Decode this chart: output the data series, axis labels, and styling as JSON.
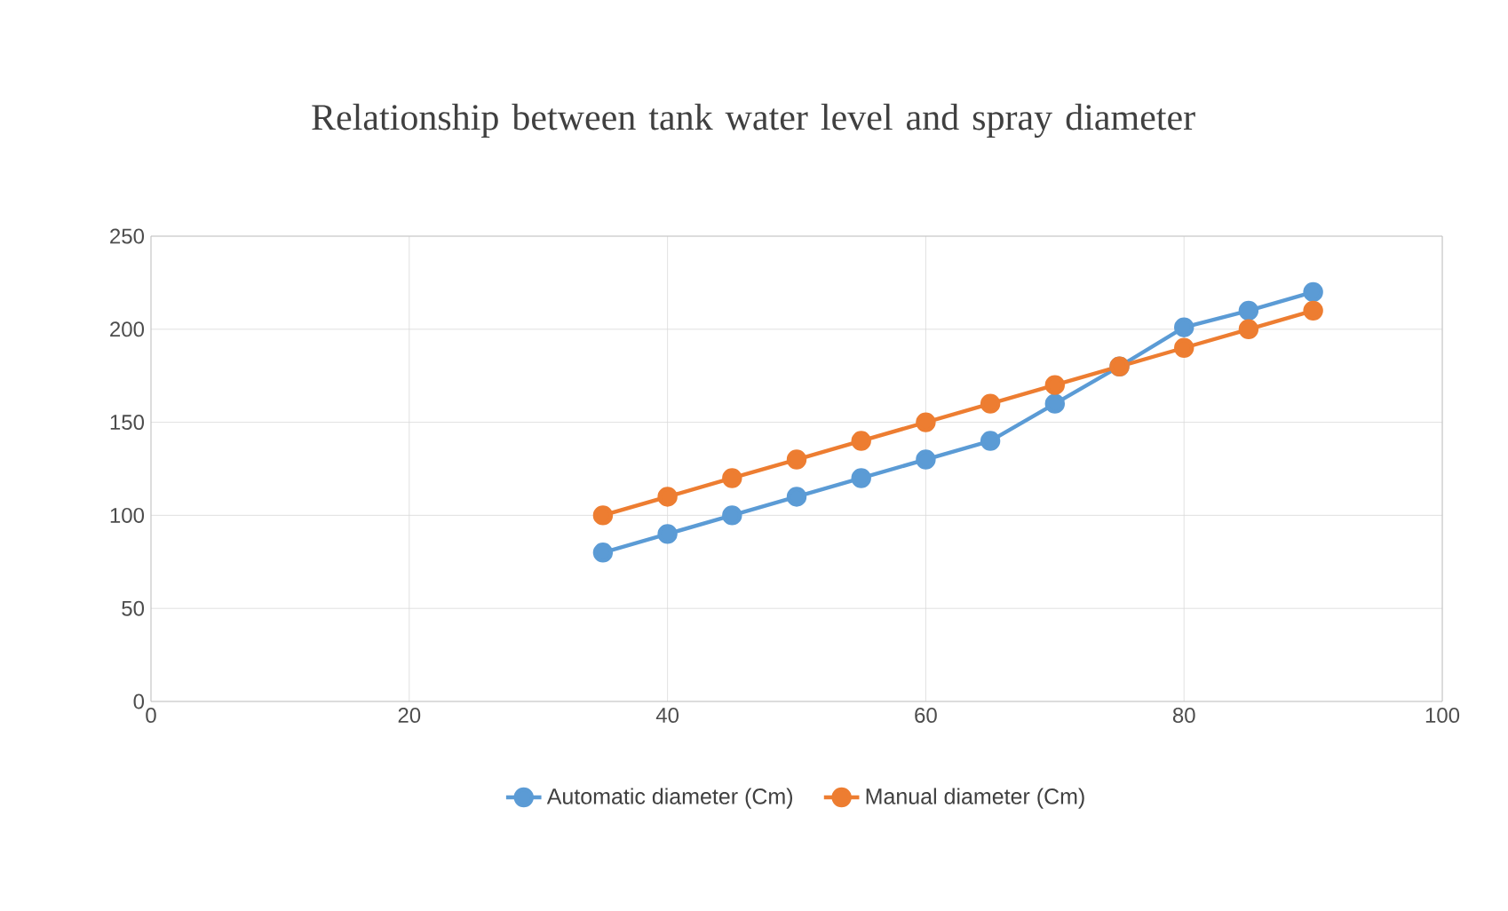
{
  "chart_data": {
    "type": "line",
    "title": "Relationship between tank water level and spray diameter",
    "x": [
      35,
      40,
      45,
      50,
      55,
      60,
      65,
      70,
      75,
      80,
      85,
      90
    ],
    "series": [
      {
        "name": "Automatic diameter (Cm)",
        "color": "#5b9bd5",
        "values": [
          80,
          90,
          100,
          110,
          120,
          130,
          140,
          160,
          180,
          201,
          210,
          220
        ]
      },
      {
        "name": "Manual diameter (Cm)",
        "color": "#ed7d31",
        "values": [
          100,
          110,
          120,
          130,
          140,
          150,
          160,
          170,
          180,
          190,
          200,
          210
        ]
      }
    ],
    "xlim": [
      0,
      100
    ],
    "xticks": [
      0,
      20,
      40,
      60,
      80,
      100
    ],
    "ylim": [
      0,
      250
    ],
    "yticks": [
      0,
      50,
      100,
      150,
      200,
      250
    ],
    "grid": true,
    "legend": "bottom",
    "marker": "circle",
    "line_style": "solid"
  }
}
